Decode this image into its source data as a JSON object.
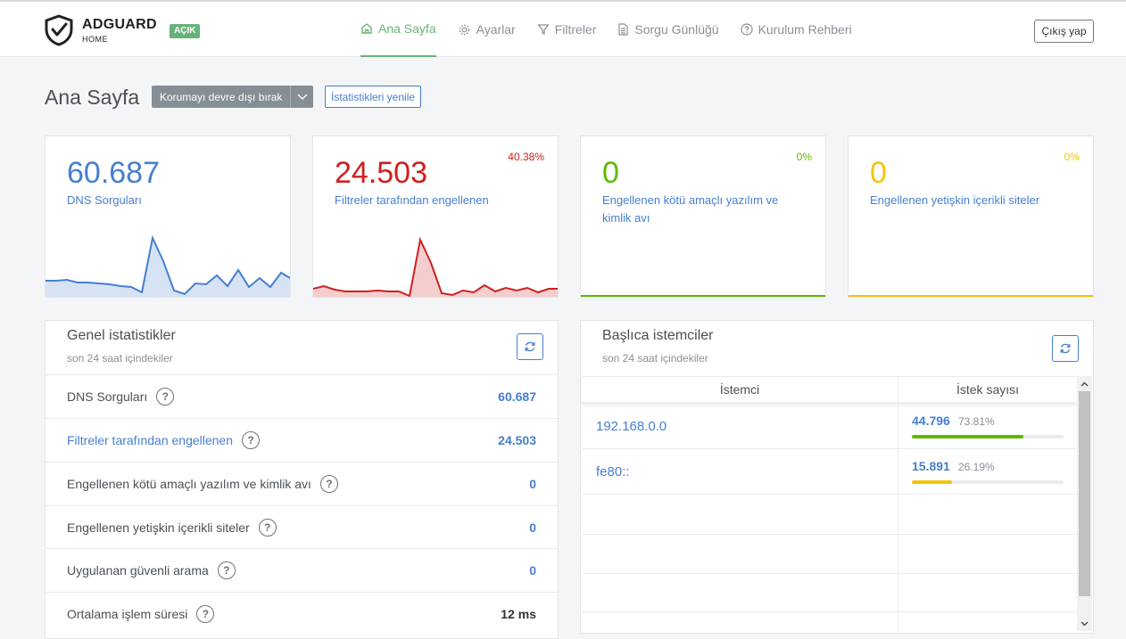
{
  "header": {
    "brand": "ADGUARD",
    "brand_sub": "HOME",
    "status_badge": "AÇIK",
    "nav": [
      {
        "label": "Ana Sayfa",
        "icon": "home-icon"
      },
      {
        "label": "Ayarlar",
        "icon": "gear-icon"
      },
      {
        "label": "Filtreler",
        "icon": "filter-icon"
      },
      {
        "label": "Sorgu Günlüğü",
        "icon": "document-icon"
      },
      {
        "label": "Kurulum Rehberi",
        "icon": "question-icon"
      }
    ],
    "logout": "Çıkış yap"
  },
  "page": {
    "title": "Ana Sayfa",
    "disable_button": "Korumayı devre dışı bırak",
    "refresh_button": "İstatistikleri yenile"
  },
  "colors": {
    "blue": "#467fcf",
    "red": "#cd201f",
    "green": "#5eba00",
    "yellow": "#f1c40f",
    "accent": "#66b574"
  },
  "cards": [
    {
      "value": "60.687",
      "label": "DNS Sorguları",
      "pct": ""
    },
    {
      "value": "24.503",
      "label": "Filtreler tarafından engellenen",
      "pct": "40.38%"
    },
    {
      "value": "0",
      "label": "Engellenen kötü amaçlı yazılım ve kimlik avı",
      "pct": "0%"
    },
    {
      "value": "0",
      "label": "Engellenen yetişkin içerikli siteler",
      "pct": "0%"
    }
  ],
  "chart_data": [
    {
      "type": "area",
      "series": [
        {
          "values": [
            18,
            18,
            19,
            16,
            16,
            15,
            14,
            12,
            11,
            5,
            66,
            40,
            7,
            3,
            15,
            14,
            24,
            12,
            30,
            11,
            21,
            11,
            27,
            20
          ]
        }
      ],
      "ylim": [
        0,
        80
      ]
    },
    {
      "type": "area",
      "series": [
        {
          "values": [
            9,
            12,
            8,
            6,
            6,
            6,
            7,
            6,
            6,
            1,
            64,
            38,
            4,
            2,
            7,
            5,
            13,
            6,
            10,
            7,
            10,
            5,
            9,
            9
          ]
        }
      ],
      "ylim": [
        0,
        80
      ]
    }
  ],
  "general": {
    "title": "Genel istatistikler",
    "subtitle": "son 24 saat içindekiler",
    "rows": [
      {
        "label": "DNS Sorguları",
        "value": "60.687"
      },
      {
        "label": "Filtreler tarafından engellenen",
        "value": "24.503"
      },
      {
        "label": "Engellenen kötü amaçlı yazılım ve kimlik avı",
        "value": "0"
      },
      {
        "label": "Engellenen yetişkin içerikli siteler",
        "value": "0"
      },
      {
        "label": "Uygulanan güvenli arama",
        "value": "0"
      },
      {
        "label": "Ortalama işlem süresi",
        "value": "12 ms"
      }
    ]
  },
  "clients": {
    "title": "Başlıca istemciler",
    "subtitle": "son 24 saat içindekiler",
    "col_client": "İstemci",
    "col_requests": "İstek sayısı",
    "rows": [
      {
        "client": "192.168.0.0",
        "count": "44.796",
        "pct": "73.81%",
        "fraction": 0.7381
      },
      {
        "client": "fe80::",
        "count": "15.891",
        "pct": "26.19%",
        "fraction": 0.2619
      }
    ]
  }
}
